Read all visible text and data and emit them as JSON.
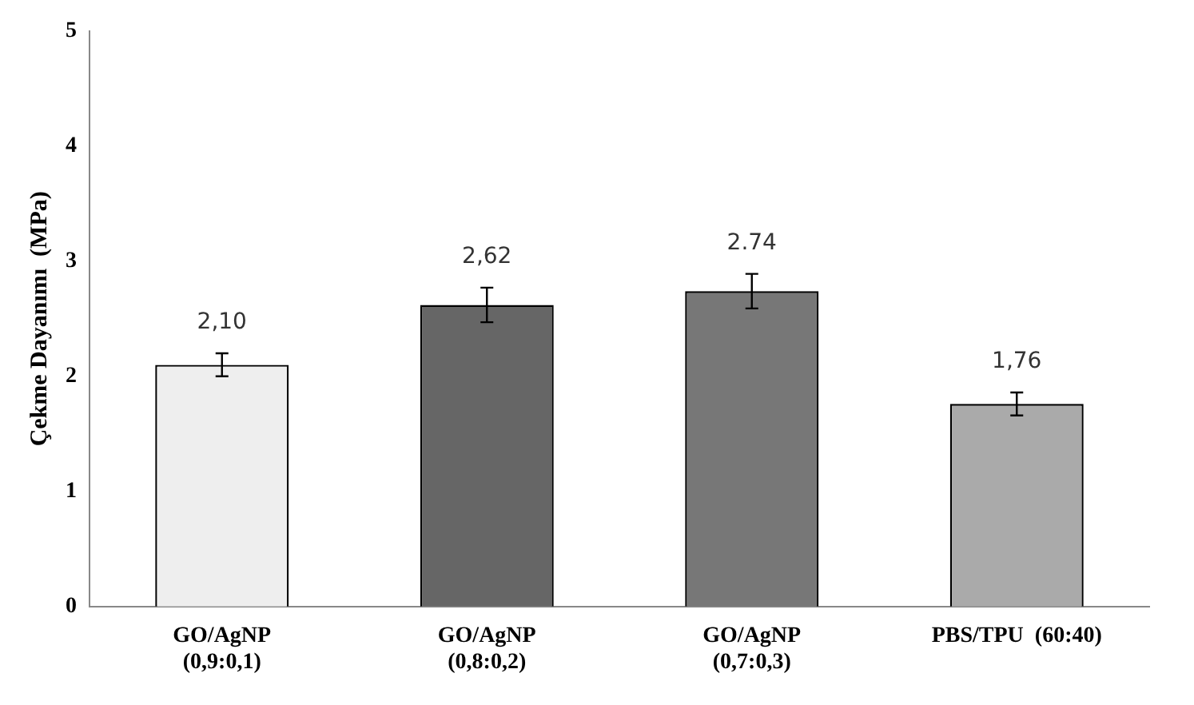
{
  "chart_data": {
    "type": "bar",
    "ylabel": "Çekme Dayanımı  (MPa)",
    "categories": [
      "GO/AgNP\n(0,9:0,1)",
      "GO/AgNP\n(0,8:0,2)",
      "GO/AgNP\n(0,7:0,3)",
      "PBS/TPU  (60:40)"
    ],
    "values": [
      2.1,
      2.62,
      2.74,
      1.76
    ],
    "colors": [
      "#eeeeee",
      "#666666",
      "#777777",
      "#aaaaaa"
    ],
    "errors": [
      0.1,
      0.15,
      0.15,
      0.1
    ],
    "value_labels": [
      "2,10",
      "2,62",
      "2.74",
      "1,76"
    ],
    "ylim": [
      0,
      5
    ],
    "yticks": [
      0,
      1,
      2,
      3,
      4,
      5
    ],
    "grid": false,
    "legend": false
  }
}
